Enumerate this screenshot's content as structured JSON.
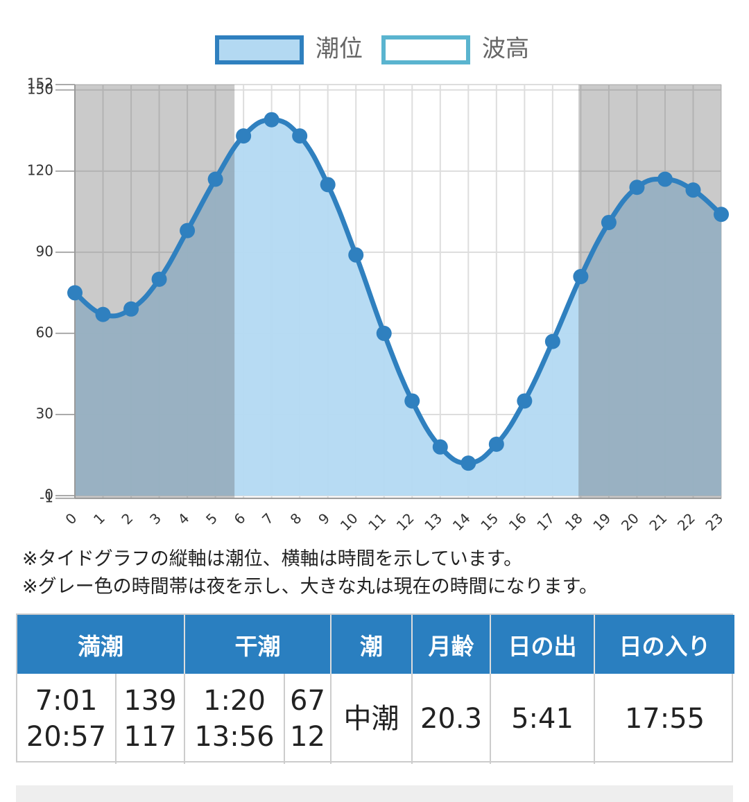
{
  "chart_data": {
    "type": "area",
    "x": [
      0,
      1,
      2,
      3,
      4,
      5,
      6,
      7,
      8,
      9,
      10,
      11,
      12,
      13,
      14,
      15,
      16,
      17,
      18,
      19,
      20,
      21,
      22,
      23
    ],
    "series": [
      {
        "name": "潮位",
        "color": "#2f80bf",
        "fill": "#b3d9f2",
        "values": [
          75,
          67,
          69,
          80,
          98,
          117,
          133,
          139,
          133,
          115,
          89,
          60,
          35,
          18,
          12,
          19,
          35,
          57,
          81,
          101,
          114,
          117,
          113,
          104
        ]
      },
      {
        "name": "波高",
        "color": "#5ab4cf",
        "fill": "#ffffff",
        "values": [
          null,
          null,
          null,
          null,
          null,
          null,
          null,
          null,
          null,
          null,
          null,
          null,
          null,
          null,
          null,
          null,
          null,
          null,
          null,
          null,
          null,
          null,
          null,
          null
        ]
      }
    ],
    "xlim": [
      0,
      23
    ],
    "ylim": [
      -1,
      152
    ],
    "yticks": [
      -1,
      0,
      30,
      60,
      90,
      120,
      150,
      152
    ],
    "grid": true,
    "legend": "top",
    "night": [
      {
        "from": 0,
        "to": 5.68
      },
      {
        "from": 17.92,
        "to": 23
      }
    ],
    "night_color": "rgba(90,90,90,0.32)"
  },
  "notes": [
    "※タイドグラフの縦軸は潮位、横軸は時間を示しています。",
    "※グレー色の時間帯は夜を示し、大きな丸は現在の時間になります。"
  ],
  "table": {
    "headers": [
      "満潮",
      "干潮",
      "潮",
      "月齢",
      "日の出",
      "日の入り"
    ],
    "high_times": [
      "7:01",
      "20:57"
    ],
    "high_levels": [
      139,
      117
    ],
    "low_times": [
      "1:20",
      "13:56"
    ],
    "low_levels": [
      67,
      12
    ],
    "tide": "中潮",
    "moon_age": 20.3,
    "sunrise": "5:41",
    "sunset": "17:55"
  }
}
